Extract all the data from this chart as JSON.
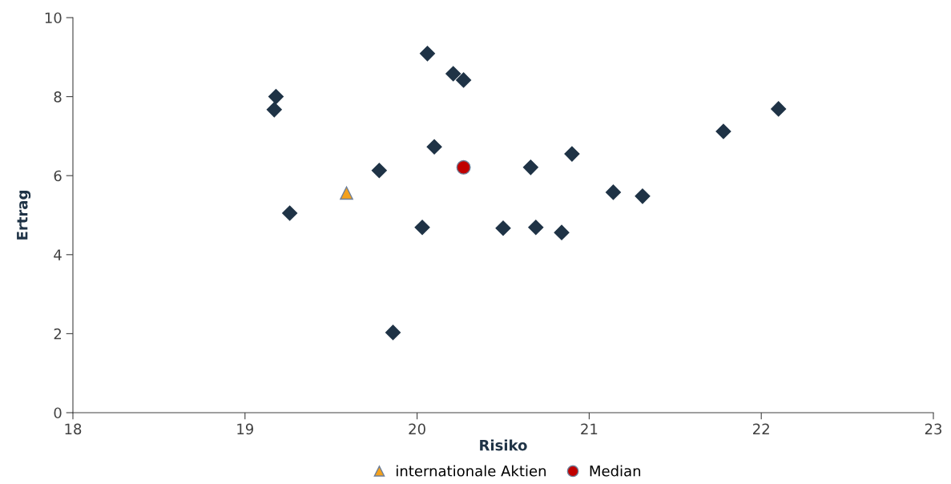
{
  "chart_data": {
    "type": "scatter",
    "xlabel": "Risiko",
    "ylabel": "Ertrag",
    "xlim": [
      18,
      23
    ],
    "xticks": [
      18,
      19,
      20,
      21,
      22,
      23
    ],
    "ylim": [
      0,
      10
    ],
    "yticks": [
      0,
      2,
      4,
      6,
      8,
      10
    ],
    "grid": false,
    "legend": "bottom",
    "series": [
      {
        "color": "#1f3346",
        "marker": "diamond",
        "x": [
          19.18,
          19.17,
          19.26,
          19.78,
          19.86,
          20.03,
          20.06,
          20.1,
          20.21,
          20.27,
          20.5,
          20.66,
          20.69,
          20.84,
          20.9,
          21.14,
          21.31,
          21.78,
          22.1
        ],
        "values": [
          8.0,
          7.67,
          5.05,
          6.13,
          2.03,
          4.69,
          9.09,
          6.73,
          8.58,
          8.42,
          4.67,
          6.21,
          4.69,
          4.56,
          6.55,
          5.58,
          5.48,
          7.12,
          7.69
        ]
      },
      {
        "name": "internationale Aktien",
        "color": "#f4a11d",
        "marker": "triangle",
        "x": [
          19.59
        ],
        "values": [
          5.56
        ]
      },
      {
        "name": "Median",
        "color": "#c00000",
        "marker": "circle",
        "x": [
          20.27
        ],
        "values": [
          6.21
        ]
      }
    ]
  }
}
